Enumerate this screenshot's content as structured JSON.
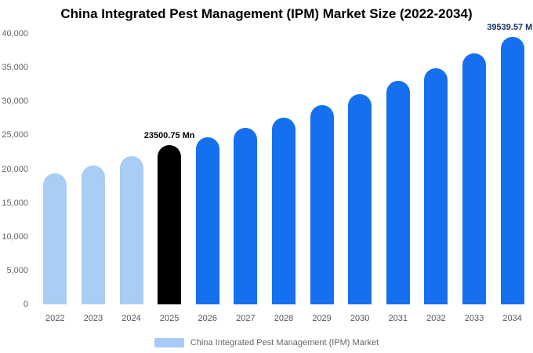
{
  "chart_data": {
    "type": "bar",
    "title": "China Integrated Pest Management (IPM) Market Size (2022-2034)",
    "categories": [
      "2022",
      "2023",
      "2024",
      "2025",
      "2026",
      "2027",
      "2028",
      "2029",
      "2030",
      "2031",
      "2032",
      "2033",
      "2034"
    ],
    "values": [
      19400,
      20500,
      21900,
      23500.75,
      24700,
      26100,
      27600,
      29400,
      31100,
      33000,
      34900,
      37100,
      39539.57
    ],
    "unit": "Mn",
    "ylim": [
      0,
      40000
    ],
    "yticks": [
      0,
      5000,
      10000,
      15000,
      20000,
      25000,
      30000,
      35000,
      40000
    ],
    "ytick_labels": [
      "0",
      "5,000",
      "10,000",
      "15,000",
      "20,000",
      "25,000",
      "30,000",
      "35,000",
      "40,000"
    ],
    "bar_colors": [
      "#a9cdf4",
      "#a9cdf4",
      "#a9cdf4",
      "#000000",
      "#1570ef",
      "#1570ef",
      "#1570ef",
      "#1570ef",
      "#1570ef",
      "#1570ef",
      "#1570ef",
      "#1570ef",
      "#1570ef"
    ],
    "data_labels": {
      "3": "23500.75 Mn",
      "12": "39539.57 Mn"
    },
    "data_label_colors": {
      "3": "#000000",
      "12": "#16325c"
    },
    "grid": false,
    "legend_position": "bottom",
    "legend": {
      "label": "China Integrated Pest Management (IPM) Market",
      "swatch_color": "#a9c9f8"
    }
  }
}
